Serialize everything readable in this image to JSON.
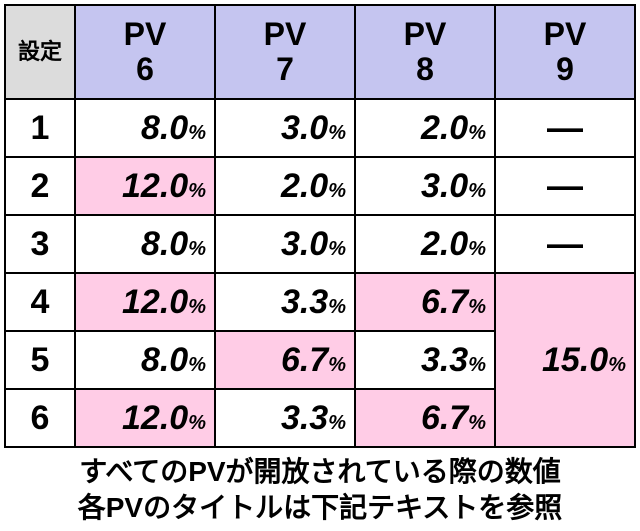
{
  "headers": {
    "setting": "設定",
    "pv6_line1": "PV",
    "pv6_line2": "6",
    "pv7_line1": "PV",
    "pv7_line2": "7",
    "pv8_line1": "PV",
    "pv8_line2": "8",
    "pv9_line1": "PV",
    "pv9_line2": "9"
  },
  "rows": [
    {
      "label": "1",
      "pv6": {
        "val": "8.0",
        "pct": "%",
        "highlight": false
      },
      "pv7": {
        "val": "3.0",
        "pct": "%",
        "highlight": false
      },
      "pv8": {
        "val": "2.0",
        "pct": "%",
        "highlight": false
      },
      "pv9": {
        "dash": "―",
        "highlight": false
      }
    },
    {
      "label": "2",
      "pv6": {
        "val": "12.0",
        "pct": "%",
        "highlight": true
      },
      "pv7": {
        "val": "2.0",
        "pct": "%",
        "highlight": false
      },
      "pv8": {
        "val": "3.0",
        "pct": "%",
        "highlight": false
      },
      "pv9": {
        "dash": "―",
        "highlight": false
      }
    },
    {
      "label": "3",
      "pv6": {
        "val": "8.0",
        "pct": "%",
        "highlight": false
      },
      "pv7": {
        "val": "3.0",
        "pct": "%",
        "highlight": false
      },
      "pv8": {
        "val": "2.0",
        "pct": "%",
        "highlight": false
      },
      "pv9": {
        "dash": "―",
        "highlight": false
      }
    },
    {
      "label": "4",
      "pv6": {
        "val": "12.0",
        "pct": "%",
        "highlight": true
      },
      "pv7": {
        "val": "3.3",
        "pct": "%",
        "highlight": false
      },
      "pv8": {
        "val": "6.7",
        "pct": "%",
        "highlight": true
      }
    },
    {
      "label": "5",
      "pv6": {
        "val": "8.0",
        "pct": "%",
        "highlight": false
      },
      "pv7": {
        "val": "6.7",
        "pct": "%",
        "highlight": true
      },
      "pv8": {
        "val": "3.3",
        "pct": "%",
        "highlight": false
      }
    },
    {
      "label": "6",
      "pv6": {
        "val": "12.0",
        "pct": "%",
        "highlight": true
      },
      "pv7": {
        "val": "3.3",
        "pct": "%",
        "highlight": false
      },
      "pv8": {
        "val": "6.7",
        "pct": "%",
        "highlight": true
      }
    }
  ],
  "merged_pv9": {
    "val": "15.0",
    "pct": "%"
  },
  "footer": {
    "line1": "すべてのPVが開放されている際の数値",
    "line2": "各PVのタイトルは下記テキストを参照"
  },
  "colors": {
    "header_setting_bg": "#dcdcdc",
    "header_pv_bg": "#c5c5f0",
    "cell_white": "#ffffff",
    "cell_pink": "#ffcce6",
    "border": "#000000"
  }
}
